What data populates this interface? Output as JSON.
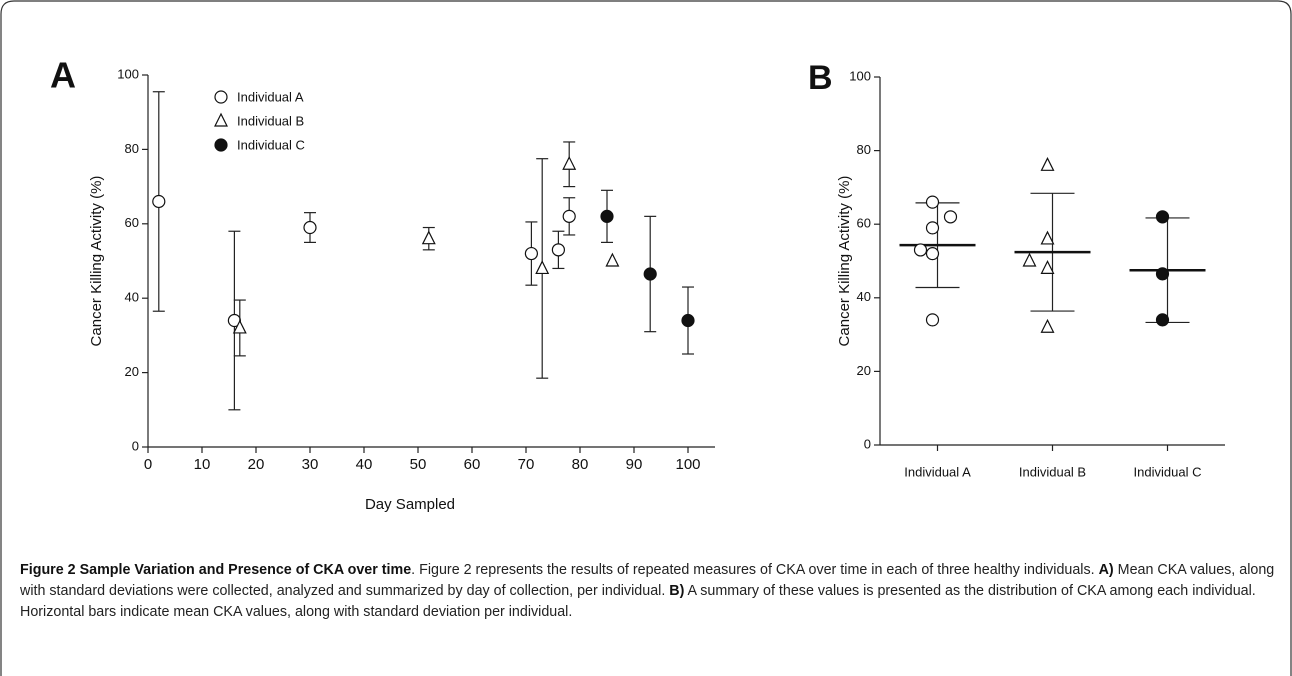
{
  "chart_data": [
    {
      "type": "scatter",
      "label": "A",
      "xlabel": "Day Sampled",
      "ylabel": "Cancer  Killing  Activity (%)",
      "xlim": [
        0,
        105
      ],
      "xticks": [
        0,
        10,
        20,
        30,
        40,
        50,
        60,
        70,
        80,
        90,
        100
      ],
      "ylim": [
        0,
        100
      ],
      "yticks": [
        0,
        20,
        40,
        60,
        80,
        100
      ],
      "series": [
        {
          "name": "Individual A",
          "marker": "circle-open",
          "x": [
            2,
            16,
            30,
            71,
            76,
            78
          ],
          "values": [
            66,
            34,
            59,
            52,
            53,
            62
          ],
          "errors": [
            29.5,
            24,
            4,
            8.5,
            5,
            5
          ]
        },
        {
          "name": "Individual B",
          "marker": "triangle-open",
          "x": [
            17,
            52,
            73,
            78,
            86
          ],
          "values": [
            32,
            56,
            48,
            76,
            50
          ],
          "errors": [
            7.5,
            3,
            29.5,
            6,
            null
          ]
        },
        {
          "name": "Individual C",
          "marker": "circle-filled",
          "x": [
            85,
            93,
            100
          ],
          "values": [
            62,
            46.5,
            34
          ],
          "errors": [
            7,
            15.5,
            9
          ]
        }
      ]
    },
    {
      "type": "dot",
      "label": "B",
      "ylabel": "Cancer  Killing  Activity (%)",
      "ylim": [
        0,
        100
      ],
      "yticks": [
        0,
        20,
        40,
        60,
        80,
        100
      ],
      "categories": [
        "Individual A",
        "Individual B",
        "Individual C"
      ],
      "markers": [
        "circle-open",
        "triangle-open",
        "circle-filled"
      ],
      "points": [
        [
          66,
          59,
          62,
          53,
          52,
          34
        ],
        [
          76,
          56,
          50,
          48,
          32
        ],
        [
          62,
          46.5,
          34
        ]
      ],
      "means": [
        54.3,
        52.4,
        47.5
      ],
      "sds": [
        11.5,
        16,
        14.2
      ]
    }
  ],
  "caption": [
    {
      "text": "Figure 2 Sample Variation and Presence of CKA over time",
      "bold": true
    },
    {
      "text": ". Figure 2 represents the results of repeated measures of CKA over time in each of three healthy individuals. ",
      "bold": false
    },
    {
      "text": "A)",
      "bold": true
    },
    {
      "text": " Mean CKA values, along with standard deviations were collected, analyzed and summarized by day of collection, per individual. ",
      "bold": false
    },
    {
      "text": "B)",
      "bold": true
    },
    {
      "text": " A summary of these values is presented as the distribution of CKA among each individual. Horizontal bars indicate mean CKA values, along with standard deviation per individual.",
      "bold": false
    }
  ]
}
